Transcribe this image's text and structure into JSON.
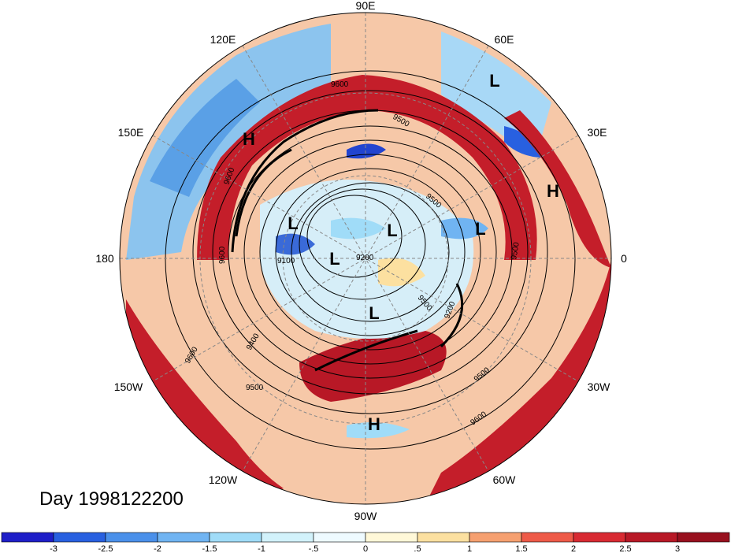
{
  "date_label": "Day 1998122200",
  "longitude_labels": [
    "90E",
    "60E",
    "30E",
    "0",
    "30W",
    "60W",
    "90W",
    "120W",
    "150W",
    "180",
    "150E",
    "120E"
  ],
  "pressure_systems": [
    "L",
    "H",
    "H",
    "L",
    "L",
    "L",
    "L",
    "L",
    "H"
  ],
  "contour_labels": [
    "9600",
    "9500",
    "9400",
    "9100",
    "9500",
    "9200",
    "9500",
    "9600",
    "9500",
    "9600",
    "9600",
    "9500",
    "9200",
    "9500",
    "9600"
  ],
  "colorbar": {
    "ticks": [
      "-3",
      "-2.5",
      "-2",
      "-1.5",
      "-1",
      "-.5",
      "0",
      ".5",
      "1",
      "1.5",
      "2",
      "2.5",
      "3"
    ],
    "colors": [
      "#1e1ec8",
      "#2860e0",
      "#4a90ea",
      "#70b4f2",
      "#a0dcf8",
      "#d2f2fb",
      "#eefaff",
      "#fff8d8",
      "#fce0a0",
      "#f6a070",
      "#ee5a48",
      "#d82a32",
      "#b81826",
      "#98101e"
    ]
  }
}
